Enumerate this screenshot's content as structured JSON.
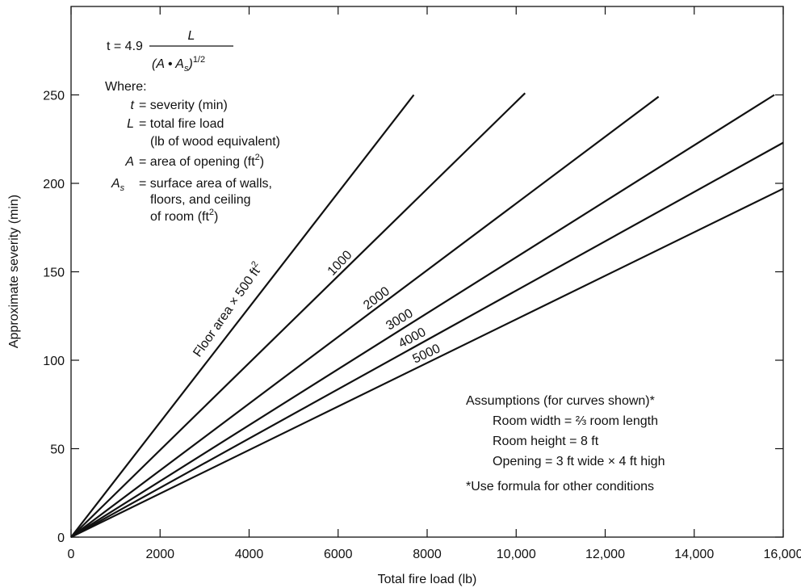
{
  "chart_data": {
    "type": "line",
    "xlabel": "Total fire load (lb)",
    "ylabel": "Approximate severity (min)",
    "xlim": [
      0,
      16000
    ],
    "ylim": [
      0,
      300
    ],
    "x_ticks": [
      0,
      2000,
      4000,
      6000,
      8000,
      10000,
      12000,
      14000,
      16000
    ],
    "x_tick_labels": [
      "0",
      "2000",
      "4000",
      "6000",
      "8000",
      "10,000",
      "12,000",
      "14,000",
      "16,000"
    ],
    "y_ticks": [
      0,
      50,
      100,
      150,
      200,
      250
    ],
    "y_tick_labels": [
      "0",
      "50",
      "100",
      "150",
      "200",
      "250"
    ],
    "grid": false,
    "series": [
      {
        "name": "Floor area × 500 ft²",
        "x": [
          0,
          7700
        ],
        "y": [
          0,
          250
        ]
      },
      {
        "name": "1000",
        "x": [
          0,
          10200
        ],
        "y": [
          0,
          251
        ]
      },
      {
        "name": "2000",
        "x": [
          0,
          13200
        ],
        "y": [
          0,
          249
        ]
      },
      {
        "name": "3000",
        "x": [
          0,
          15800
        ],
        "y": [
          0,
          250
        ]
      },
      {
        "name": "4000",
        "x": [
          0,
          16000
        ],
        "y": [
          0,
          223
        ]
      },
      {
        "name": "5000",
        "x": [
          0,
          16000
        ],
        "y": [
          0,
          197
        ]
      }
    ],
    "formula": {
      "lhs": "t = 4.9",
      "numerator": "L",
      "denominator_open": "(A • A",
      "denominator_sub": "s",
      "denominator_close": ")",
      "denominator_exp": "1/2"
    },
    "where": {
      "heading": "Where:",
      "t_sym": "t",
      "t_def": "= severity (min)",
      "L_sym": "L",
      "L_def1": "= total fire load",
      "L_def2": "(lb of wood equivalent)",
      "A_sym": "A",
      "A_def": "= area of opening (ft",
      "A_def_exp": "2",
      "A_def_close": ")",
      "As_sym": "A",
      "As_sub": "s",
      "As_def1": "= surface area of walls,",
      "As_def2": "floors, and ceiling",
      "As_def3": "of room (ft",
      "As_def3_exp": "2",
      "As_def3_close": ")"
    },
    "assumptions": {
      "heading": "Assumptions (for curves shown)*",
      "line1": "Room width = ⅔ room length",
      "line2": "Room height = 8 ft",
      "line3": "Opening = 3 ft wide × 4 ft high",
      "footnote": "*Use formula for other conditions"
    },
    "line_labels": {
      "floor_main": "Floor area × 500 ft",
      "floor_exp": "2",
      "l1000": "1000",
      "l2000": "2000",
      "l3000": "3000",
      "l4000": "4000",
      "l5000": "5000"
    }
  }
}
